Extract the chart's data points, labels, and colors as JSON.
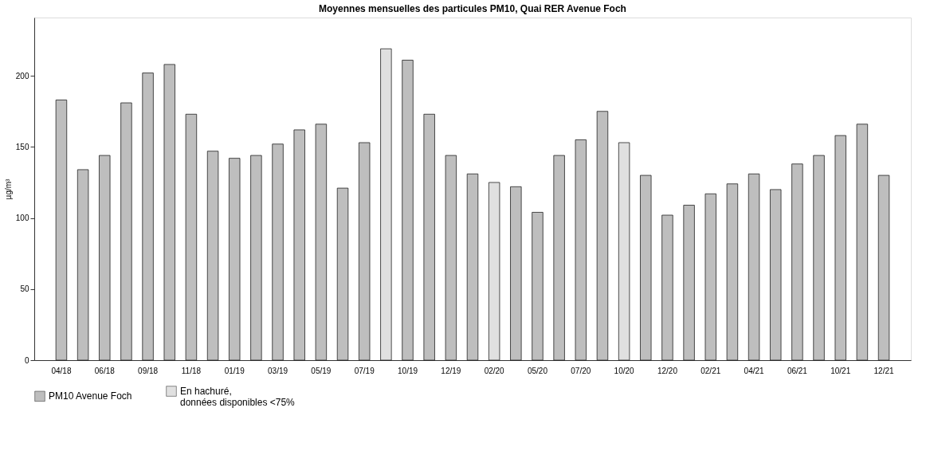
{
  "chart_data": {
    "type": "bar",
    "title": "Moyennes mensuelles des particules PM10, Quai RER Avenue Foch",
    "ylabel": "µg/m³",
    "categories": [
      "04/18",
      null,
      "06/18",
      null,
      "09/18",
      null,
      "11/18",
      null,
      "01/19",
      null,
      "03/19",
      null,
      "05/19",
      null,
      "07/19",
      null,
      "10/19",
      null,
      "12/19",
      null,
      "02/20",
      null,
      "05/20",
      null,
      "07/20",
      null,
      "10/20",
      null,
      "12/20",
      null,
      "02/21",
      null,
      "04/21",
      null,
      "06/21",
      null,
      "10/21",
      null,
      "12/21"
    ],
    "series": [
      {
        "name": "PM10 Avenue Foch",
        "color": "#bebebe",
        "values": [
          183,
          134,
          144,
          181,
          202,
          208,
          173,
          147,
          142,
          144,
          152,
          162,
          166,
          121,
          153,
          null,
          211,
          173,
          144,
          131,
          null,
          122,
          104,
          144,
          155,
          175,
          null,
          130,
          102,
          109,
          117,
          124,
          131,
          120,
          138,
          144,
          158,
          166,
          130
        ]
      },
      {
        "name": "En hachuré,\ndonnées disponibles <75%",
        "color": "#e0e0e0",
        "values": [
          null,
          null,
          null,
          null,
          null,
          null,
          null,
          null,
          null,
          null,
          null,
          null,
          null,
          null,
          null,
          219,
          null,
          null,
          null,
          null,
          125,
          null,
          null,
          null,
          null,
          null,
          153,
          null,
          null,
          null,
          null,
          null,
          null,
          null,
          null,
          null,
          null,
          null,
          null
        ]
      }
    ],
    "ylim": [
      0,
      241
    ],
    "yticks": [
      0,
      50,
      100,
      150,
      200
    ],
    "grid": false,
    "legend": "bottom left"
  }
}
